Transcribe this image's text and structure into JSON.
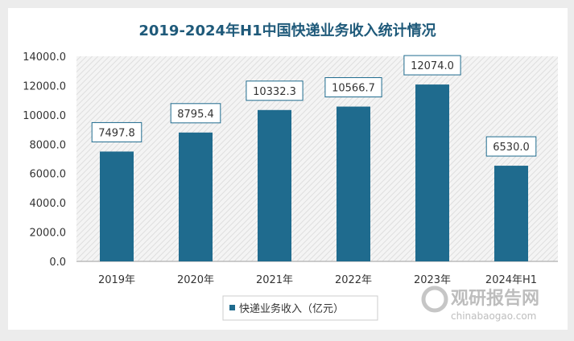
{
  "chart_data": {
    "type": "bar",
    "title": "2019-2024年H1中国快递业务收入统计情况",
    "categories": [
      "2019年",
      "2020年",
      "2021年",
      "2022年",
      "2023年",
      "2024年H1"
    ],
    "series": [
      {
        "name": "快递业务收入（亿元）",
        "values": [
          7497.8,
          8795.4,
          10332.3,
          10566.7,
          12074.0,
          6530.0
        ]
      }
    ],
    "data_labels": [
      "7497.8",
      "8795.4",
      "10332.3",
      "10566.7",
      "12074.0",
      "6530.0"
    ],
    "yticks": [
      "0.0",
      "2000.0",
      "4000.0",
      "6000.0",
      "8000.0",
      "10000.0",
      "12000.0",
      "14000.0"
    ],
    "ylim": [
      0,
      14000
    ],
    "xlabel": "",
    "ylabel": "",
    "grid": false,
    "legend": "bottom",
    "colors": {
      "bar": "#1f6b8e",
      "title": "#1f5a7a",
      "background_hatch": "#dcdcdc"
    }
  },
  "watermark": {
    "name": "观研报告网",
    "url": "chinabaogao.com"
  }
}
